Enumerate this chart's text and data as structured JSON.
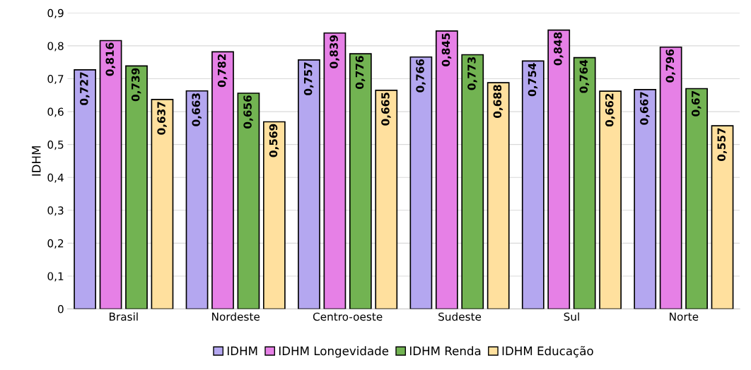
{
  "chart_data": {
    "type": "bar",
    "ylabel": "IDHM",
    "categories": [
      "Brasil",
      "Nordeste",
      "Centro-oeste",
      "Sudeste",
      "Sul",
      "Norte"
    ],
    "series": [
      {
        "name": "IDHM",
        "color": "#b4a7f0",
        "values": [
          0.727,
          0.663,
          0.757,
          0.766,
          0.754,
          0.667
        ],
        "value_labels": [
          "0,727",
          "0,663",
          "0,757",
          "0,766",
          "0,754",
          "0,667"
        ]
      },
      {
        "name": "IDHM Longevidade",
        "color": "#e680e6",
        "values": [
          0.816,
          0.782,
          0.839,
          0.845,
          0.848,
          0.796
        ],
        "value_labels": [
          "0,816",
          "0,782",
          "0,839",
          "0,845",
          "0,848",
          "0,796"
        ]
      },
      {
        "name": "IDHM Renda",
        "color": "#72b352",
        "values": [
          0.739,
          0.656,
          0.776,
          0.773,
          0.764,
          0.67
        ],
        "value_labels": [
          "0,739",
          "0,656",
          "0,776",
          "0,773",
          "0,764",
          "0,67"
        ]
      },
      {
        "name": "IDHM Educação",
        "color": "#ffe09e",
        "values": [
          0.637,
          0.569,
          0.665,
          0.688,
          0.662,
          0.557
        ],
        "value_labels": [
          "0,637",
          "0,569",
          "0,665",
          "0,688",
          "0,662",
          "0,557"
        ]
      }
    ],
    "ylim": [
      0,
      0.9
    ],
    "yticks": [
      {
        "value": 0,
        "label": "0"
      },
      {
        "value": 0.1,
        "label": "0,1"
      },
      {
        "value": 0.2,
        "label": "0,2"
      },
      {
        "value": 0.3,
        "label": "0,3"
      },
      {
        "value": 0.4,
        "label": "0,4"
      },
      {
        "value": 0.5,
        "label": "0,5"
      },
      {
        "value": 0.6,
        "label": "0,6"
      },
      {
        "value": 0.7,
        "label": "0,7"
      },
      {
        "value": 0.8,
        "label": "0,8"
      },
      {
        "value": 0.9,
        "label": "0,9"
      }
    ],
    "grid": "y",
    "legend": "bottom"
  }
}
